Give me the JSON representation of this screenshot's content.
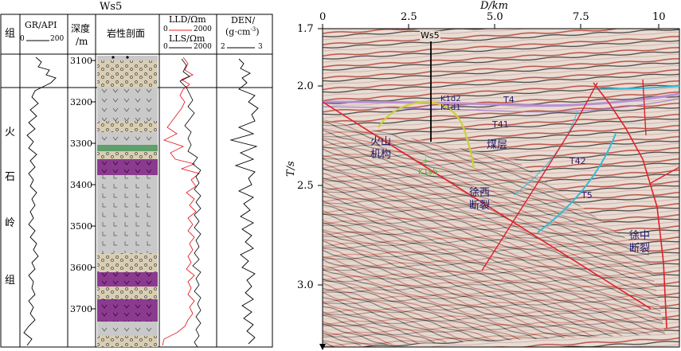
{
  "figure": {
    "left": {
      "well_name": "Ws5",
      "headers": {
        "formation": "组",
        "gr": "GR/API",
        "gr_scale_min": "0",
        "gr_scale_max": "200",
        "depth_line1": "深度",
        "depth_line2": "/m",
        "lithology": "岩性剖面",
        "lld": "LLD/Ωm",
        "lld_scale_min": "0",
        "lld_scale_max": "2000",
        "lls": "LLS/Ωm",
        "lls_scale_min": "0",
        "lls_scale_max": "2000",
        "den_line1": "DEN/",
        "den_line2": "(g·cm",
        "den_sup": "-3",
        "den_line2_end": ")",
        "den_scale_min": "2",
        "den_scale_max": "3"
      },
      "formation_chars": [
        "火",
        "石",
        "岭",
        "组"
      ],
      "depth_ticks": [
        "3100",
        "3200",
        "3300",
        "3400",
        "3500",
        "3600",
        "3700"
      ],
      "colors": {
        "lld": "#e8232a",
        "lls": "#000000",
        "volcanic_purple": "#8b3a8f",
        "tuff_green": "#5da06a",
        "sandstone": "#d9ceb4",
        "volcanic_grey": "#c9c9c9"
      }
    },
    "right": {
      "x_axis_title": "D/km",
      "x_ticks": [
        "0",
        "2.5",
        "5.0",
        "7.5",
        "10"
      ],
      "y_axis_title": "T/s",
      "y_ticks": [
        "1.7",
        "2.0",
        "2.5",
        "3.0"
      ],
      "labels": {
        "well": "Ws5",
        "horizon_t4": "T4",
        "horizon_t41": "T41",
        "horizon_t42": "T42",
        "horizon_t5": "T5",
        "formation_k1d2": "K1d2",
        "formation_k1d1": "K1d1",
        "formation_k1sh": "K1sh",
        "volcanic_1": "火山",
        "volcanic_2": "机构",
        "coal": "煤层",
        "xuxi_1": "徐西",
        "xuxi_2": "断裂",
        "xuzhong_1": "徐中",
        "xuzhong_2": "断裂"
      },
      "colors": {
        "fault": "#e0202a",
        "horizon_purple": "#b58ad6",
        "horizon_cyan": "#35b9d8",
        "volcanic_outline": "#c8d23a",
        "well": "#000000"
      }
    }
  }
}
